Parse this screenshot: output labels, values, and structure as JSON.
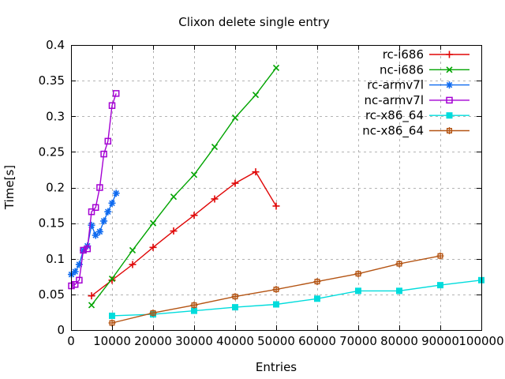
{
  "chart_data": {
    "type": "line",
    "title": "Clixon delete single entry",
    "xlabel": "Entries",
    "ylabel": "Time[s]",
    "xlim": [
      0,
      100000
    ],
    "ylim": [
      0,
      0.4
    ],
    "grid": true,
    "legend_position": "top-right",
    "colors": {
      "background": "#ffffff",
      "axis": "#000000",
      "grid": "#b4b4b4"
    },
    "x_ticks": [
      0,
      10000,
      20000,
      30000,
      40000,
      50000,
      60000,
      70000,
      80000,
      90000,
      100000
    ],
    "x_tick_labels": [
      "0",
      "10000",
      "20000",
      "30000",
      "40000",
      "50000",
      "60000",
      "70000",
      "80000",
      "90000",
      "100000"
    ],
    "y_ticks": [
      0,
      0.05,
      0.1,
      0.15,
      0.2,
      0.25,
      0.3,
      0.35,
      0.4
    ],
    "y_tick_labels": [
      "0",
      "0.05",
      "0.1",
      "0.15",
      "0.2",
      "0.25",
      "0.3",
      "0.35",
      "0.4"
    ],
    "series": [
      {
        "name": "rc-i686",
        "color": "#e00707",
        "marker": "plus",
        "x": [
          5000,
          10000,
          15000,
          20000,
          25000,
          30000,
          35000,
          40000,
          45000,
          50000
        ],
        "y": [
          0.048,
          0.07,
          0.092,
          0.116,
          0.139,
          0.161,
          0.184,
          0.206,
          0.222,
          0.174
        ]
      },
      {
        "name": "nc-i686",
        "color": "#00a400",
        "marker": "cross",
        "x": [
          5000,
          10000,
          15000,
          20000,
          25000,
          30000,
          35000,
          40000,
          45000,
          50000
        ],
        "y": [
          0.035,
          0.072,
          0.112,
          0.15,
          0.187,
          0.218,
          0.257,
          0.298,
          0.33,
          0.368
        ]
      },
      {
        "name": "rc-armv7l",
        "color": "#0f6bf0",
        "marker": "asterisk",
        "x": [
          100,
          1000,
          2000,
          3000,
          4000,
          5000,
          6000,
          7000,
          8000,
          9000,
          10000,
          11000
        ],
        "y": [
          0.078,
          0.082,
          0.092,
          0.112,
          0.118,
          0.147,
          0.133,
          0.138,
          0.153,
          0.166,
          0.178,
          0.192
        ]
      },
      {
        "name": "nc-armv7l",
        "color": "#a400d3",
        "marker": "square-open",
        "x": [
          100,
          1000,
          2000,
          3000,
          4000,
          5000,
          6000,
          7000,
          8000,
          9000,
          10000,
          11000
        ],
        "y": [
          0.062,
          0.064,
          0.07,
          0.112,
          0.114,
          0.166,
          0.172,
          0.2,
          0.247,
          0.265,
          0.315,
          0.332
        ]
      },
      {
        "name": "rc-x86_64",
        "color": "#00dcdc",
        "marker": "square-filled",
        "x": [
          10000,
          20000,
          30000,
          40000,
          50000,
          60000,
          70000,
          80000,
          90000,
          100000
        ],
        "y": [
          0.02,
          0.022,
          0.027,
          0.032,
          0.036,
          0.044,
          0.055,
          0.055,
          0.063,
          0.07
        ]
      },
      {
        "name": "nc-x86_64",
        "color": "#b45413",
        "marker": "box-plus",
        "x": [
          10000,
          20000,
          30000,
          40000,
          50000,
          60000,
          70000,
          80000,
          90000
        ],
        "y": [
          0.01,
          0.024,
          0.035,
          0.047,
          0.057,
          0.068,
          0.079,
          0.093,
          0.104
        ]
      }
    ]
  }
}
